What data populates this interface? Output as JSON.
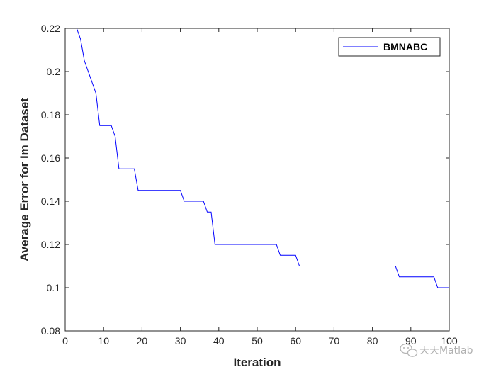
{
  "chart_data": {
    "type": "line",
    "title": "",
    "xlabel": "Iteration",
    "ylabel": "Average Error for Im Dataset",
    "xlim": [
      0,
      100
    ],
    "ylim": [
      0.08,
      0.22
    ],
    "xticks": [
      0,
      10,
      20,
      30,
      40,
      50,
      60,
      70,
      80,
      90,
      100
    ],
    "yticks": [
      0.08,
      0.1,
      0.12,
      0.14,
      0.16,
      0.18,
      0.2,
      0.22
    ],
    "xtick_labels": [
      "0",
      "10",
      "20",
      "30",
      "40",
      "50",
      "60",
      "70",
      "80",
      "90",
      "100"
    ],
    "ytick_labels": [
      "0.08",
      "0.1",
      "0.12",
      "0.14",
      "0.16",
      "0.18",
      "0.2",
      "0.22"
    ],
    "grid": false,
    "legend_position": "top-right",
    "series": [
      {
        "name": "BMNABC",
        "color": "#0000ff",
        "x": [
          3,
          4,
          5,
          6,
          7,
          8,
          9,
          10,
          11,
          12,
          13,
          14,
          15,
          16,
          17,
          18,
          19,
          20,
          21,
          22,
          23,
          24,
          25,
          26,
          27,
          28,
          29,
          30,
          31,
          32,
          33,
          34,
          35,
          36,
          37,
          38,
          39,
          40,
          41,
          42,
          43,
          44,
          45,
          46,
          47,
          48,
          49,
          50,
          51,
          52,
          53,
          54,
          55,
          56,
          57,
          58,
          59,
          60,
          61,
          62,
          63,
          64,
          65,
          66,
          67,
          68,
          69,
          70,
          71,
          72,
          73,
          74,
          75,
          76,
          77,
          78,
          79,
          80,
          81,
          82,
          83,
          84,
          85,
          86,
          87,
          88,
          89,
          90,
          91,
          92,
          93,
          94,
          95,
          96,
          97,
          98,
          99,
          100
        ],
        "y": [
          0.22,
          0.215,
          0.205,
          0.2,
          0.195,
          0.19,
          0.175,
          0.175,
          0.175,
          0.175,
          0.17,
          0.155,
          0.155,
          0.155,
          0.155,
          0.155,
          0.145,
          0.145,
          0.145,
          0.145,
          0.145,
          0.145,
          0.145,
          0.145,
          0.145,
          0.145,
          0.145,
          0.145,
          0.14,
          0.14,
          0.14,
          0.14,
          0.14,
          0.14,
          0.135,
          0.135,
          0.12,
          0.12,
          0.12,
          0.12,
          0.12,
          0.12,
          0.12,
          0.12,
          0.12,
          0.12,
          0.12,
          0.12,
          0.12,
          0.12,
          0.12,
          0.12,
          0.12,
          0.115,
          0.115,
          0.115,
          0.115,
          0.115,
          0.11,
          0.11,
          0.11,
          0.11,
          0.11,
          0.11,
          0.11,
          0.11,
          0.11,
          0.11,
          0.11,
          0.11,
          0.11,
          0.11,
          0.11,
          0.11,
          0.11,
          0.11,
          0.11,
          0.11,
          0.11,
          0.11,
          0.11,
          0.11,
          0.11,
          0.11,
          0.105,
          0.105,
          0.105,
          0.105,
          0.105,
          0.105,
          0.105,
          0.105,
          0.105,
          0.105,
          0.1,
          0.1,
          0.1,
          0.1
        ]
      }
    ]
  },
  "watermark": {
    "text": "天天Matlab",
    "icon": "wechat-icon"
  }
}
